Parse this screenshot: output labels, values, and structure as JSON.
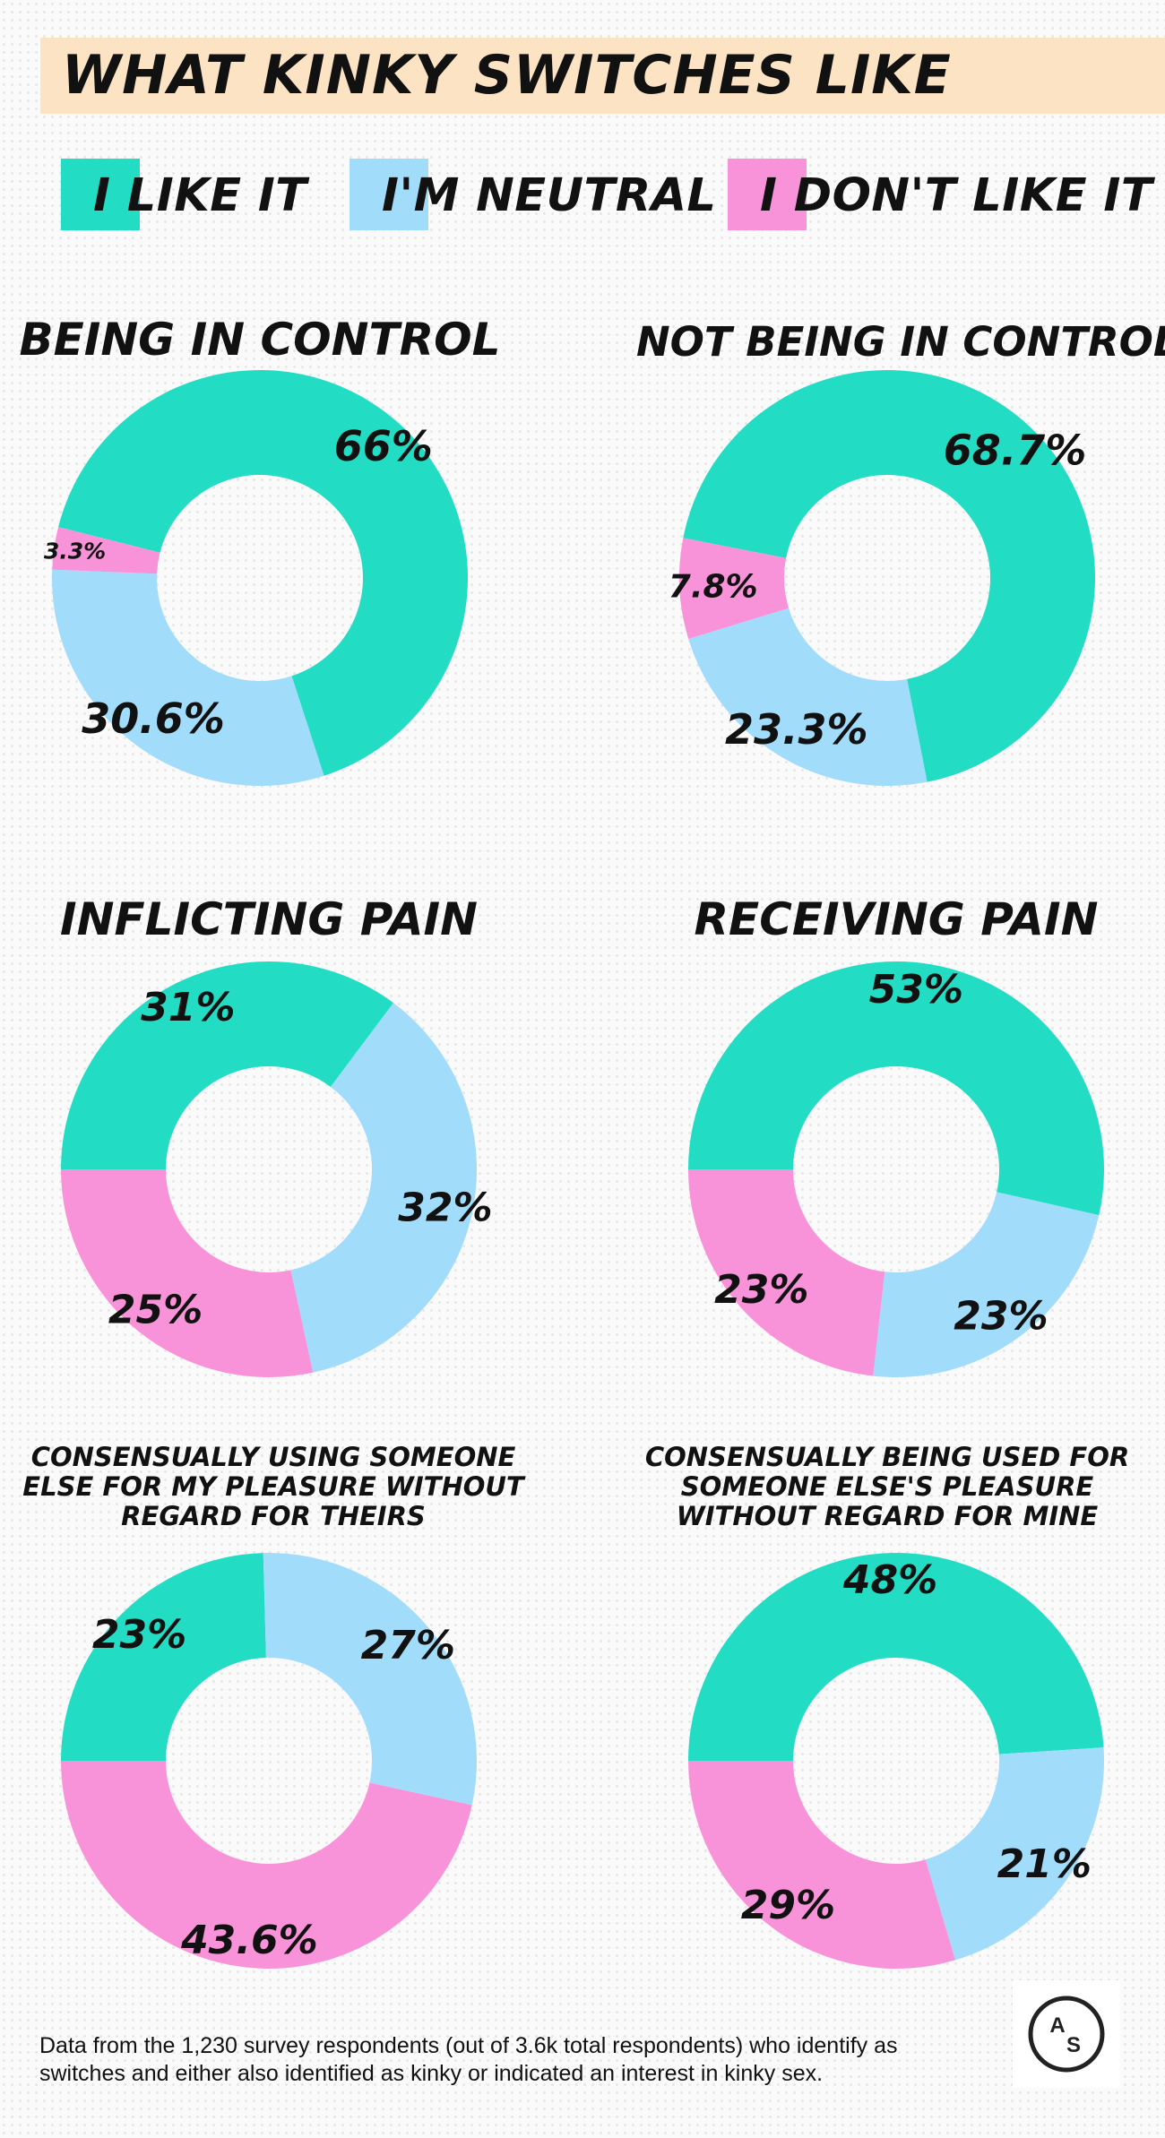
{
  "title": "WHAT KINKY SWITCHES LIKE",
  "legend": [
    {
      "label": "I LIKE IT",
      "color": "#22dcc4"
    },
    {
      "label": "I'M NEUTRAL",
      "color": "#a2dcfb"
    },
    {
      "label": "I DON'T LIKE IT",
      "color": "#f993d9"
    }
  ],
  "colors": {
    "like": "#22dcc4",
    "neutral": "#a2dcfb",
    "dislike": "#f993d9",
    "title_bar": "#fbe3c4"
  },
  "chart_data": [
    {
      "type": "pie",
      "title": "BEING IN CONTROL",
      "categories": [
        "I LIKE IT",
        "I'M NEUTRAL",
        "I DON'T LIKE IT"
      ],
      "values": [
        66,
        30.6,
        3.3
      ],
      "labels": [
        "66%",
        "30.6%",
        "3.3%"
      ]
    },
    {
      "type": "pie",
      "title": "NOT BEING IN CONTROL",
      "categories": [
        "I LIKE IT",
        "I'M NEUTRAL",
        "I DON'T LIKE IT"
      ],
      "values": [
        68.7,
        23.3,
        7.8
      ],
      "labels": [
        "68.7%",
        "23.3%",
        "7.8%"
      ]
    },
    {
      "type": "pie",
      "title": "INFLICTING PAIN",
      "categories": [
        "I LIKE IT",
        "I'M NEUTRAL",
        "I DON'T LIKE IT"
      ],
      "values": [
        31,
        32,
        25
      ],
      "labels": [
        "31%",
        "32%",
        "25%"
      ]
    },
    {
      "type": "pie",
      "title": "RECEIVING PAIN",
      "categories": [
        "I LIKE IT",
        "I'M NEUTRAL",
        "I DON'T LIKE IT"
      ],
      "values": [
        53,
        23,
        23
      ],
      "labels": [
        "53%",
        "23%",
        "23%"
      ]
    },
    {
      "type": "pie",
      "title": [
        "CONSENSUALLY USING SOMEONE",
        "ELSE FOR MY PLEASURE WITHOUT",
        "REGARD FOR THEIRS"
      ],
      "categories": [
        "I LIKE IT",
        "I'M NEUTRAL",
        "I DON'T LIKE IT"
      ],
      "values": [
        23,
        27,
        43.6
      ],
      "labels": [
        "23%",
        "27%",
        "43.6%"
      ]
    },
    {
      "type": "pie",
      "title": [
        "CONSENSUALLY BEING USED FOR",
        "SOMEONE ELSE'S PLEASURE",
        "WITHOUT REGARD FOR MINE"
      ],
      "categories": [
        "I LIKE IT",
        "I'M NEUTRAL",
        "I DON'T LIKE IT"
      ],
      "values": [
        48,
        21,
        29
      ],
      "labels": [
        "48%",
        "21%",
        "29%"
      ]
    }
  ],
  "footnote": "Data from the 1,230 survey respondents (out of 3.6k total respondents) who identify as switches and either also identified as kinky or indicated an interest in kinky sex.",
  "logo": {
    "icon": "autostraddle-logo-icon",
    "letters": [
      "A",
      "S"
    ]
  }
}
